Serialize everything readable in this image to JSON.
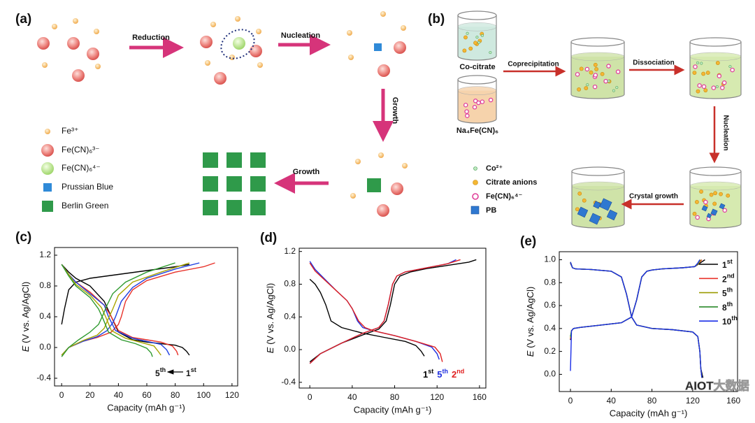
{
  "panel_a": {
    "label": "(a)",
    "steps": [
      "Reduction",
      "Nucleation",
      "Growth",
      "Growth"
    ],
    "legend": [
      "Fe³⁺",
      "Fe(CN)₆³⁻",
      "Fe(CN)₆⁴⁻",
      "Prussian Blue",
      "Berlin Green"
    ]
  },
  "panel_b": {
    "label": "(b)",
    "solutions": [
      "Co-citrate",
      "Na₄Fe(CN)₆"
    ],
    "steps": [
      "Coprecipitation",
      "Dissociation",
      "Nucleation",
      "Crystal growth"
    ],
    "legend": [
      "Co²⁺",
      "Citrate anions",
      "Fe(CN)₆⁴⁻",
      "PB"
    ]
  },
  "chart_data": [
    {
      "type": "line",
      "panel_label": "(c)",
      "xlabel": "Capacity (mAh g⁻¹)",
      "ylabel": "E (V vs. Ag/AgCl)",
      "xlim": [
        -5,
        124
      ],
      "ylim": [
        -0.5,
        1.3
      ],
      "xticks": [
        0,
        20,
        40,
        60,
        80,
        100,
        120
      ],
      "yticks": [
        -0.4,
        {
          "value": 0,
          "label": "0.0"
        },
        0.4,
        0.8,
        1.2
      ],
      "annotations": [
        "5th",
        "1st"
      ],
      "series": [
        {
          "color": "#000000",
          "x": [
            0,
            5,
            10,
            20,
            30,
            35,
            40,
            50,
            60,
            70,
            80,
            85,
            88,
            90,
            null,
            0,
            2,
            5,
            10,
            20,
            40,
            60,
            80,
            90
          ],
          "values": [
            1.08,
            0.98,
            0.9,
            0.8,
            0.6,
            0.4,
            0.2,
            0.1,
            0.07,
            0.05,
            0.03,
            0.0,
            -0.05,
            -0.1,
            null,
            0.3,
            0.5,
            0.75,
            0.85,
            0.9,
            0.95,
            1.0,
            1.05,
            1.08
          ]
        },
        {
          "color": "#e8322a",
          "x": [
            0,
            5,
            10,
            20,
            30,
            35,
            40,
            50,
            60,
            70,
            78,
            81,
            82,
            null,
            0,
            5,
            15,
            25,
            35,
            40,
            42,
            45,
            50,
            60,
            80,
            100,
            108
          ],
          "values": [
            1.08,
            0.95,
            0.85,
            0.72,
            0.55,
            0.4,
            0.22,
            0.13,
            0.1,
            0.07,
            0.02,
            -0.05,
            -0.1,
            null,
            -0.1,
            0.0,
            0.08,
            0.13,
            0.2,
            0.3,
            0.4,
            0.6,
            0.75,
            0.87,
            0.98,
            1.05,
            1.1
          ]
        },
        {
          "color": "#1f3fe0",
          "x": [
            0,
            5,
            10,
            20,
            30,
            33,
            38,
            50,
            60,
            70,
            74,
            76,
            null,
            0,
            5,
            15,
            25,
            32,
            36,
            38,
            42,
            50,
            60,
            80,
            97
          ],
          "values": [
            1.08,
            0.95,
            0.85,
            0.7,
            0.55,
            0.4,
            0.22,
            0.12,
            0.08,
            0.04,
            -0.03,
            -0.1,
            null,
            -0.1,
            0.0,
            0.08,
            0.14,
            0.22,
            0.32,
            0.4,
            0.6,
            0.78,
            0.9,
            1.02,
            1.1
          ]
        },
        {
          "color": "#a9a400",
          "x": [
            0,
            5,
            10,
            20,
            28,
            31,
            35,
            45,
            55,
            65,
            68,
            70,
            null,
            0,
            5,
            15,
            25,
            30,
            33,
            36,
            40,
            50,
            70,
            90
          ],
          "values": [
            1.08,
            0.95,
            0.82,
            0.68,
            0.52,
            0.4,
            0.22,
            0.12,
            0.07,
            0.02,
            -0.05,
            -0.1,
            null,
            -0.1,
            0,
            0.09,
            0.16,
            0.25,
            0.38,
            0.5,
            0.68,
            0.85,
            0.98,
            1.1
          ]
        },
        {
          "color": "#2e9a2e",
          "x": [
            0,
            5,
            10,
            20,
            26,
            29,
            33,
            42,
            52,
            60,
            63,
            64,
            null,
            0,
            5,
            12,
            20,
            26,
            29,
            32,
            36,
            45,
            60,
            80
          ],
          "values": [
            1.08,
            0.93,
            0.8,
            0.65,
            0.5,
            0.38,
            0.2,
            0.1,
            0.05,
            -0.01,
            -0.07,
            -0.12,
            null,
            -0.12,
            0,
            0.1,
            0.2,
            0.3,
            0.42,
            0.55,
            0.7,
            0.85,
            0.98,
            1.1
          ]
        }
      ]
    },
    {
      "type": "line",
      "panel_label": "(d)",
      "xlabel": "Capacity (mAh g⁻¹)",
      "ylabel": "E (V vs. Ag/AgCl)",
      "xlim": [
        -10,
        166
      ],
      "ylim": [
        -0.47,
        1.24
      ],
      "xticks": [
        0,
        40,
        80,
        120,
        160
      ],
      "yticks": [
        -0.4,
        {
          "value": 0,
          "label": "0.0"
        },
        0.4,
        0.8,
        1.2
      ],
      "legend": "lower right",
      "series": [
        {
          "name": "1st",
          "color": "#000000",
          "x": [
            0,
            5,
            10,
            15,
            20,
            30,
            50,
            70,
            90,
            100,
            105,
            108,
            null,
            0,
            10,
            30,
            50,
            65,
            72,
            76,
            80,
            85,
            95,
            110,
            130,
            150,
            157
          ],
          "values": [
            0.86,
            0.8,
            0.7,
            0.55,
            0.35,
            0.27,
            0.2,
            0.15,
            0.1,
            0.05,
            -0.02,
            -0.08,
            null,
            -0.15,
            -0.05,
            0.08,
            0.18,
            0.25,
            0.35,
            0.55,
            0.8,
            0.9,
            0.95,
            0.99,
            1.03,
            1.07,
            1.1
          ]
        },
        {
          "name": "5th",
          "color": "#2030e0",
          "x": [
            0,
            5,
            15,
            25,
            35,
            40,
            45,
            50,
            60,
            80,
            100,
            115,
            120,
            122,
            null,
            0,
            10,
            30,
            50,
            65,
            70,
            74,
            78,
            82,
            90,
            110,
            130,
            138
          ],
          "values": [
            1.08,
            0.98,
            0.85,
            0.72,
            0.6,
            0.5,
            0.35,
            0.27,
            0.23,
            0.17,
            0.1,
            0.03,
            -0.05,
            -0.12,
            null,
            -0.17,
            -0.05,
            0.08,
            0.2,
            0.27,
            0.35,
            0.55,
            0.8,
            0.9,
            0.95,
            1.0,
            1.05,
            1.1
          ]
        },
        {
          "name": "2nd",
          "color": "#e02020",
          "x": [
            0,
            5,
            15,
            25,
            35,
            40,
            46,
            52,
            60,
            80,
            100,
            118,
            123,
            125,
            null,
            0,
            10,
            30,
            50,
            65,
            70,
            74,
            78,
            82,
            90,
            110,
            130,
            142
          ],
          "values": [
            1.06,
            0.96,
            0.84,
            0.72,
            0.6,
            0.5,
            0.35,
            0.27,
            0.23,
            0.17,
            0.1,
            0.03,
            -0.05,
            -0.15,
            null,
            -0.17,
            -0.05,
            0.08,
            0.2,
            0.27,
            0.35,
            0.55,
            0.8,
            0.9,
            0.95,
            1.0,
            1.05,
            1.1
          ]
        }
      ]
    },
    {
      "type": "line",
      "panel_label": "(e)",
      "xlabel": "Capacity (mAh g⁻¹)",
      "ylabel": "E (V vs. Ag/AgCl)",
      "xlim": [
        -11,
        164
      ],
      "ylim": [
        -0.15,
        1.07
      ],
      "xticks": [
        0,
        40,
        80,
        120,
        160
      ],
      "yticks": [
        {
          "value": 0,
          "label": "0.0"
        },
        0.2,
        0.4,
        0.6,
        0.8,
        {
          "value": 1,
          "label": "1.0"
        }
      ],
      "legend": "upper right",
      "series": [
        {
          "name": "1st",
          "color": "#000000",
          "x": [
            0,
            2,
            5,
            20,
            40,
            50,
            55,
            60,
            65,
            80,
            100,
            120,
            125,
            127,
            128,
            130,
            null,
            0,
            1,
            3,
            10,
            30,
            50,
            60,
            65,
            70,
            75,
            80,
            90,
            110,
            122,
            127,
            132
          ],
          "values": [
            0.97,
            0.93,
            0.92,
            0.915,
            0.9,
            0.85,
            0.7,
            0.5,
            0.43,
            0.4,
            0.39,
            0.37,
            0.33,
            0.2,
            0.05,
            -0.03,
            null,
            0.3,
            0.38,
            0.4,
            0.41,
            0.43,
            0.45,
            0.5,
            0.65,
            0.85,
            0.9,
            0.91,
            0.92,
            0.93,
            0.94,
            0.97,
            1.0
          ]
        },
        {
          "name": "2nd",
          "color": "#e8322a",
          "x": [
            0,
            2,
            5,
            20,
            40,
            50,
            55,
            60,
            65,
            80,
            100,
            120,
            125,
            127,
            128,
            129,
            null,
            0,
            1,
            3,
            10,
            30,
            50,
            60,
            65,
            70,
            75,
            80,
            90,
            110,
            122,
            126,
            129
          ],
          "values": [
            0.98,
            0.93,
            0.92,
            0.915,
            0.9,
            0.85,
            0.7,
            0.5,
            0.43,
            0.4,
            0.39,
            0.37,
            0.33,
            0.2,
            0.05,
            -0.03,
            null,
            0.31,
            0.38,
            0.4,
            0.41,
            0.43,
            0.45,
            0.5,
            0.65,
            0.85,
            0.9,
            0.91,
            0.92,
            0.93,
            0.94,
            0.97,
            1.0
          ]
        },
        {
          "name": "5th",
          "color": "#9b9b00",
          "x": [
            0,
            2,
            5,
            20,
            40,
            50,
            55,
            60,
            65,
            80,
            100,
            120,
            125,
            127,
            128,
            129,
            null,
            0,
            1,
            3,
            10,
            30,
            50,
            60,
            65,
            70,
            75,
            80,
            90,
            110,
            122,
            126,
            128
          ],
          "values": [
            0.98,
            0.93,
            0.92,
            0.915,
            0.9,
            0.85,
            0.7,
            0.5,
            0.43,
            0.4,
            0.39,
            0.37,
            0.33,
            0.2,
            0.05,
            -0.03,
            null,
            0.32,
            0.38,
            0.4,
            0.41,
            0.43,
            0.45,
            0.5,
            0.65,
            0.85,
            0.9,
            0.91,
            0.92,
            0.93,
            0.94,
            0.97,
            1.0
          ]
        },
        {
          "name": "8th",
          "color": "#2a8a2a",
          "x": [
            0,
            2,
            5,
            20,
            40,
            50,
            55,
            60,
            65,
            80,
            100,
            120,
            125,
            127,
            128,
            129,
            null,
            0,
            1,
            3,
            10,
            30,
            50,
            60,
            65,
            70,
            75,
            80,
            90,
            110,
            122,
            125,
            127
          ],
          "values": [
            0.98,
            0.93,
            0.92,
            0.915,
            0.9,
            0.85,
            0.7,
            0.5,
            0.43,
            0.4,
            0.39,
            0.37,
            0.33,
            0.2,
            0.05,
            -0.03,
            null,
            0.33,
            0.38,
            0.4,
            0.41,
            0.43,
            0.45,
            0.5,
            0.65,
            0.85,
            0.9,
            0.91,
            0.92,
            0.93,
            0.94,
            0.97,
            1.0
          ]
        },
        {
          "name": "10th",
          "color": "#1a2ee8",
          "x": [
            0,
            2,
            5,
            20,
            40,
            50,
            55,
            60,
            65,
            80,
            100,
            120,
            125,
            127,
            128,
            129,
            null,
            0,
            1,
            3,
            10,
            30,
            50,
            60,
            65,
            70,
            75,
            80,
            90,
            110,
            122,
            125,
            127
          ],
          "values": [
            0.98,
            0.93,
            0.92,
            0.915,
            0.9,
            0.85,
            0.7,
            0.5,
            0.43,
            0.4,
            0.39,
            0.37,
            0.33,
            0.2,
            0.05,
            -0.03,
            null,
            0.03,
            0.38,
            0.4,
            0.41,
            0.43,
            0.45,
            0.5,
            0.65,
            0.85,
            0.9,
            0.91,
            0.92,
            0.93,
            0.94,
            0.97,
            1.0
          ]
        }
      ]
    }
  ],
  "watermark": "AIOT大数据"
}
